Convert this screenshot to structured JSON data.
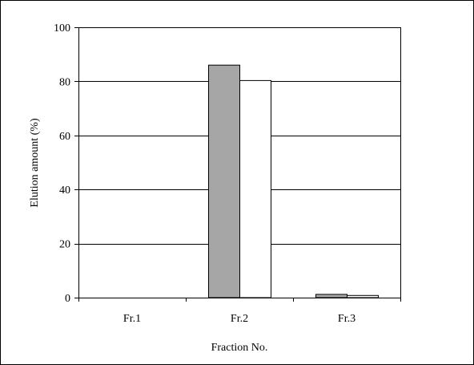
{
  "chart_data": {
    "type": "bar",
    "title": "",
    "xlabel": "Fraction No.",
    "ylabel": "Elution amount (%)",
    "categories": [
      "Fr.1",
      "Fr.2",
      "Fr.3"
    ],
    "series": [
      {
        "color": "#a6a6a6",
        "values": [
          0,
          86,
          1.2
        ]
      },
      {
        "color": "#ffffff",
        "values": [
          0,
          80.3,
          0.8
        ]
      }
    ],
    "ylim": [
      0,
      100
    ],
    "yticks": [
      0,
      20,
      40,
      60,
      80,
      100
    ],
    "grid": true,
    "legend": "none"
  }
}
